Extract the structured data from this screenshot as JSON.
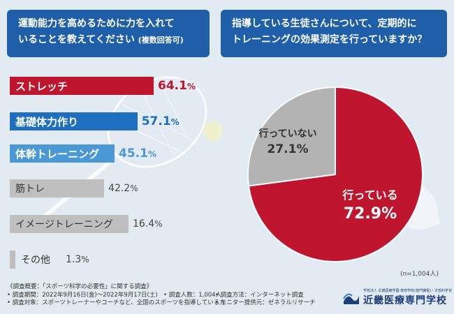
{
  "colors": {
    "primary": "#c0152f",
    "blue": "#1f6fc0",
    "lightblue": "#4a98d6",
    "gray": "#bfbfbf",
    "header": "#1f5ea8"
  },
  "left_question": {
    "line1": "運動能力を高めるために力を入れて",
    "line2": "いることを教えてください",
    "suffix": "(複数回答可)"
  },
  "right_question": {
    "line1": "指導している生徒さんについて、定期的に",
    "line2": "トレーニングの効果測定を行っていますか？"
  },
  "chart_data": [
    {
      "type": "bar",
      "orientation": "horizontal",
      "title": "運動能力を高めるために力を入れていることを教えてください (複数回答可)",
      "categories": [
        "ストレッチ",
        "基礎体力作り",
        "体幹トレーニング",
        "筋トレ",
        "イメージトレーニング",
        "その他"
      ],
      "values": [
        64.1,
        57.1,
        45.1,
        42.2,
        16.4,
        1.3
      ],
      "value_labels": [
        "64.1",
        "57.1",
        "45.1",
        "42.2",
        "16.4",
        "1.3"
      ],
      "unit": "%",
      "bar_colors": [
        "#c0152f",
        "#1f6fc0",
        "#4a98d6",
        "#bfbfbf",
        "#bfbfbf",
        "#bfbfbf"
      ]
    },
    {
      "type": "pie",
      "title": "指導している生徒さんについて、定期的にトレーニングの効果測定を行っていますか？",
      "labels": [
        "行っている",
        "行っていない"
      ],
      "values": [
        72.9,
        27.1
      ],
      "value_labels": [
        "72.9%",
        "27.1%"
      ],
      "colors": [
        "#c0152f",
        "#b3b3b3"
      ],
      "n_note": "(n=1,004人)"
    }
  ],
  "footer": {
    "line1_c1": "《調査概要：「スポーツ科学の必要性」に関する調査》",
    "line2_c1": "• 調査期間：2022年9月16日(金)～2022年9月17日(土)",
    "line2_c2": "• 調査人数：1,004人",
    "line2_c3": "• 調査方法：インターネット調査",
    "line3_c1": "• 調査対象：スポーツトレーナーやコーチなど、全国のスポーツを指導している方",
    "line3_c3": "• モニター提供元：ゼネラルリサーチ"
  },
  "logo": {
    "small": "学校法人 近畿医療学園 専修学校(専門課程)・文部科学省",
    "name": "近畿医療専門学校"
  }
}
